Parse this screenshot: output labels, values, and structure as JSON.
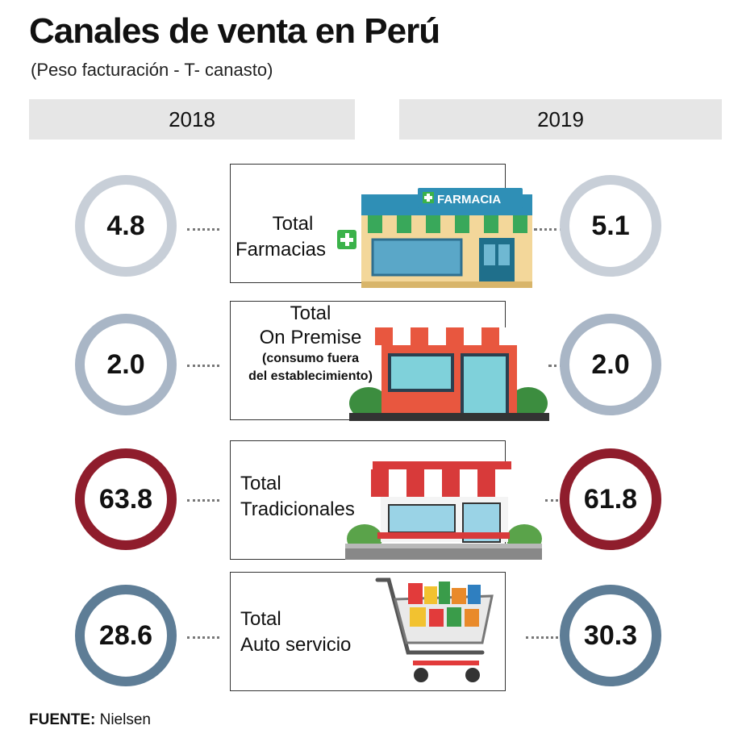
{
  "title": "Canales de venta en Perú",
  "subtitle": "(Peso facturación - T- canasto)",
  "chart_data": {
    "type": "table",
    "years": [
      "2018",
      "2019"
    ],
    "rows": [
      {
        "label_lines": [
          "Total",
          "Farmacias"
        ],
        "values": [
          4.8,
          5.1
        ],
        "display": [
          "4.8",
          "5.1"
        ],
        "color": "#c8cfd8"
      },
      {
        "label_lines": [
          "Total",
          "On Premise",
          "(consumo fuera",
          "del establecimiento)"
        ],
        "values": [
          2.0,
          2.0
        ],
        "display": [
          "2.0",
          "2.0"
        ],
        "color": "#a9b6c6"
      },
      {
        "label_lines": [
          "Total",
          "Tradicionales"
        ],
        "values": [
          63.8,
          61.8
        ],
        "display": [
          "63.8",
          "61.8"
        ],
        "color": "#8f1d2c"
      },
      {
        "label_lines": [
          "Total",
          "Auto servicio"
        ],
        "values": [
          28.6,
          30.3
        ],
        "display": [
          "28.6",
          "30.3"
        ],
        "color": "#5e7d96"
      }
    ]
  },
  "pharmacy_sign": "FARMACIA",
  "source": {
    "label": "FUENTE:",
    "text": "Nielsen"
  }
}
